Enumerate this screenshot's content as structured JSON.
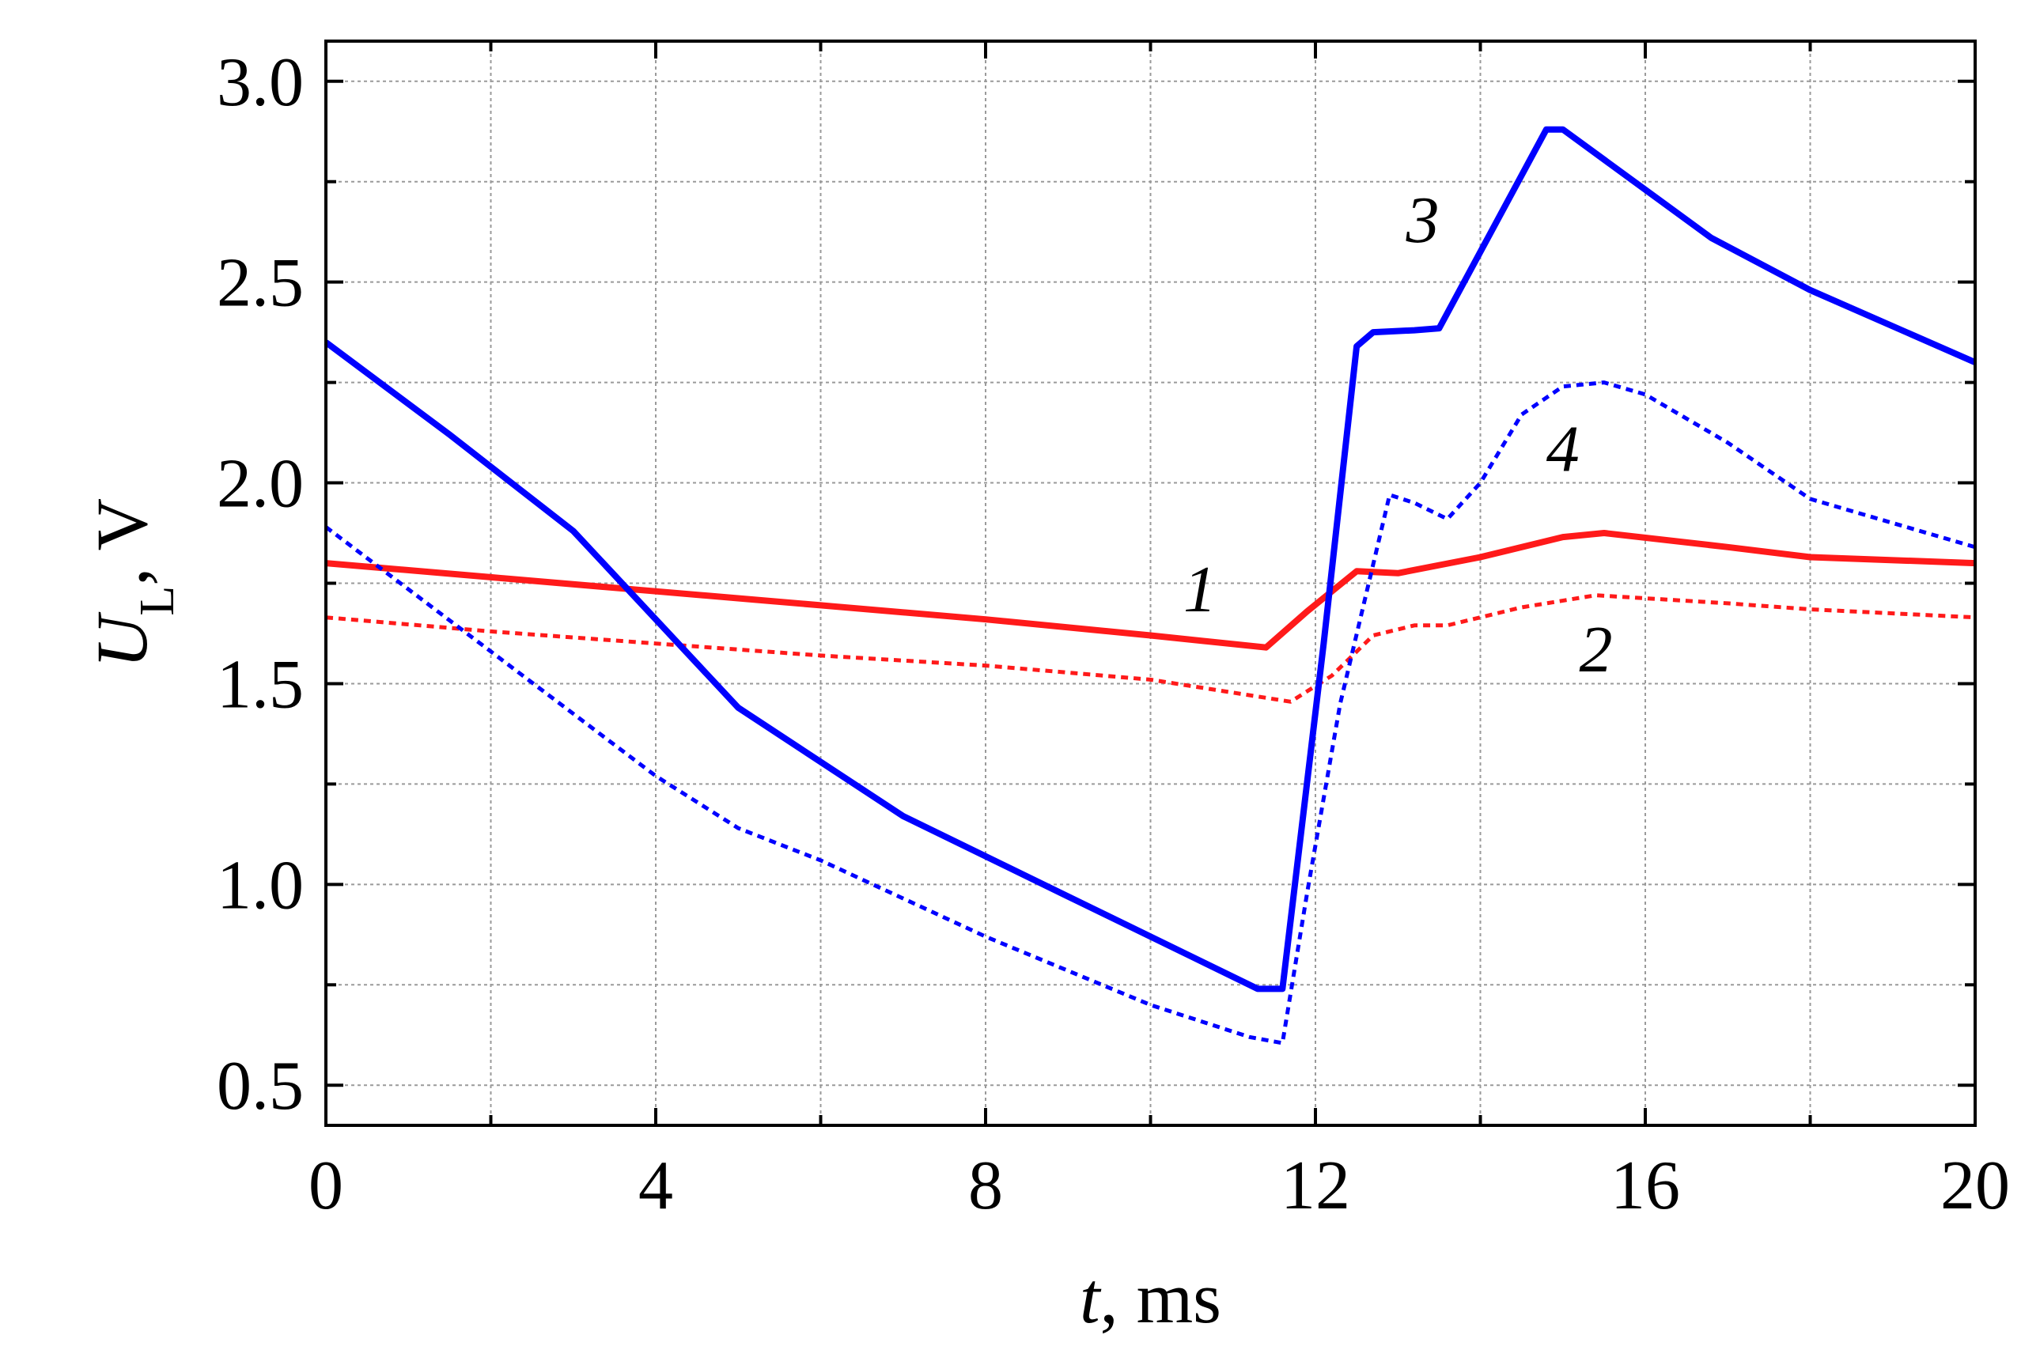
{
  "chart_data": {
    "type": "line",
    "xlabel": {
      "var": "t",
      "rest": ", ms"
    },
    "ylabel": {
      "var": "U",
      "sub": "L",
      "rest": ", V"
    },
    "xlim": [
      0,
      20
    ],
    "ylim": [
      0.4,
      3.1
    ],
    "xticks": [
      0,
      4,
      8,
      12,
      16,
      20
    ],
    "xminor": [
      2,
      6,
      10,
      14,
      18
    ],
    "yticks": [
      0.5,
      1.0,
      1.5,
      2.0,
      2.5,
      3.0
    ],
    "yminor": [
      0.75,
      1.25,
      1.75,
      2.25,
      2.75
    ],
    "xtick_labels": [
      "0",
      "4",
      "8",
      "12",
      "16",
      "20"
    ],
    "ytick_labels": [
      "0.5",
      "1.0",
      "1.5",
      "2.0",
      "2.5",
      "3.0"
    ],
    "grid": true,
    "legend": "none",
    "series": [
      {
        "label": "1",
        "color": "#ff1a1a",
        "style": "solid",
        "label_pos": [
          10.6,
          1.68
        ],
        "x": [
          0,
          2,
          4,
          6,
          8,
          10,
          11.4,
          11.9,
          12.5,
          13,
          14,
          15,
          15.5,
          17,
          18,
          20
        ],
        "y": [
          1.8,
          1.765,
          1.73,
          1.695,
          1.66,
          1.62,
          1.59,
          1.68,
          1.78,
          1.775,
          1.815,
          1.865,
          1.875,
          1.84,
          1.815,
          1.8
        ]
      },
      {
        "label": "2",
        "color": "#ff1a1a",
        "style": "dotted",
        "label_pos": [
          15.4,
          1.53
        ],
        "x": [
          0,
          2,
          4,
          6,
          8,
          10,
          11.7,
          12.2,
          12.7,
          13.2,
          13.6,
          14.5,
          15.4,
          17,
          18,
          20
        ],
        "y": [
          1.665,
          1.63,
          1.6,
          1.57,
          1.545,
          1.51,
          1.455,
          1.52,
          1.62,
          1.645,
          1.645,
          1.69,
          1.72,
          1.7,
          1.685,
          1.665
        ]
      },
      {
        "label": "3",
        "color": "#0000ff",
        "style": "solid",
        "label_pos": [
          13.3,
          2.6
        ],
        "x": [
          0,
          1.5,
          3,
          5,
          7,
          9,
          10.5,
          11.3,
          11.6,
          12.1,
          12.5,
          12.7,
          13.2,
          13.5,
          14.8,
          15.0,
          16.8,
          18,
          20
        ],
        "y": [
          2.35,
          2.12,
          1.88,
          1.44,
          1.17,
          0.97,
          0.82,
          0.74,
          0.74,
          1.6,
          2.34,
          2.375,
          2.38,
          2.385,
          2.88,
          2.88,
          2.61,
          2.48,
          2.3
        ]
      },
      {
        "label": "4",
        "color": "#0000ff",
        "style": "dotted",
        "label_pos": [
          15.0,
          2.03
        ],
        "x": [
          0,
          2,
          4,
          5,
          6,
          8,
          10,
          11.2,
          11.6,
          11.9,
          12.3,
          12.9,
          13.2,
          13.6,
          14.0,
          14.5,
          15.0,
          15.5,
          16.0,
          17.0,
          18.0,
          20
        ],
        "y": [
          1.89,
          1.58,
          1.27,
          1.14,
          1.06,
          0.87,
          0.7,
          0.62,
          0.605,
          0.98,
          1.45,
          1.97,
          1.95,
          1.91,
          2.0,
          2.17,
          2.24,
          2.25,
          2.22,
          2.1,
          1.96,
          1.84
        ]
      }
    ]
  }
}
